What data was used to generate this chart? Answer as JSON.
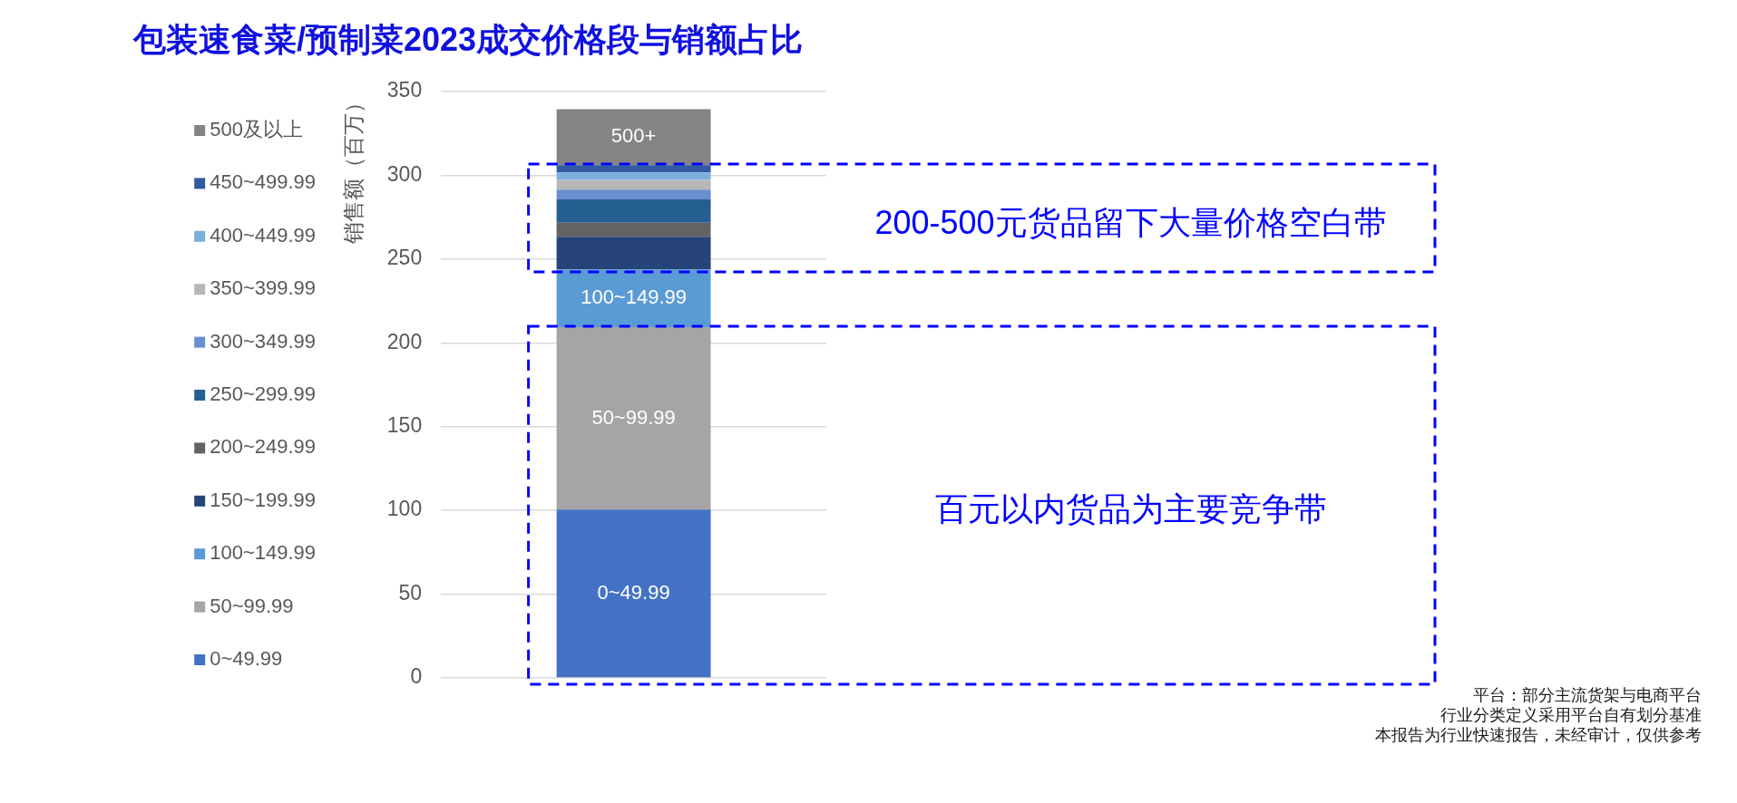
{
  "chart_data": {
    "type": "bar",
    "title": "包装速食菜/预制菜2023成交价格段与销额占比",
    "ylabel": "销售额（百万）",
    "categories": [
      null
    ],
    "stacked": true,
    "series": [
      {
        "name": "0~49.99",
        "color": "#4472c4",
        "values": [
          100.5
        ]
      },
      {
        "name": "50~99.99",
        "color": "#a5a5a5",
        "values": [
          108.8
        ]
      },
      {
        "name": "100~149.99",
        "color": "#5b9bd5",
        "values": [
          34.6
        ]
      },
      {
        "name": "150~199.99",
        "color": "#264478",
        "values": [
          19.4
        ]
      },
      {
        "name": "200~249.99",
        "color": "#636363",
        "values": [
          8.4
        ]
      },
      {
        "name": "250~299.99",
        "color": "#255e91",
        "values": [
          13.9
        ]
      },
      {
        "name": "300~349.99",
        "color": "#698ed0",
        "values": [
          5.8
        ]
      },
      {
        "name": "350~399.99",
        "color": "#b7b7b7",
        "values": [
          5.9
        ]
      },
      {
        "name": "400~449.99",
        "color": "#7cafdd",
        "values": [
          4.4
        ]
      },
      {
        "name": "450~499.99",
        "color": "#335aa1",
        "values": [
          4.4
        ]
      },
      {
        "name": "500及以上",
        "color": "#848484",
        "values": [
          33.4
        ]
      }
    ],
    "ylim": [
      0,
      350
    ],
    "yticks": [
      0,
      50,
      100,
      150,
      200,
      250,
      300,
      350
    ],
    "grid": "y",
    "legend": "left",
    "annotations": [
      "200-500元货品留下大量价格空白带",
      "百元以内货品为主要竞争带",
      "0~49.99",
      "50~99.99",
      "100~149.99",
      "500+",
      "平台：部分主流货架与电商平台",
      "行业分类定义采用平台自有划分基准",
      "本报告为行业快速报告，未经审计，仅供参考"
    ]
  }
}
